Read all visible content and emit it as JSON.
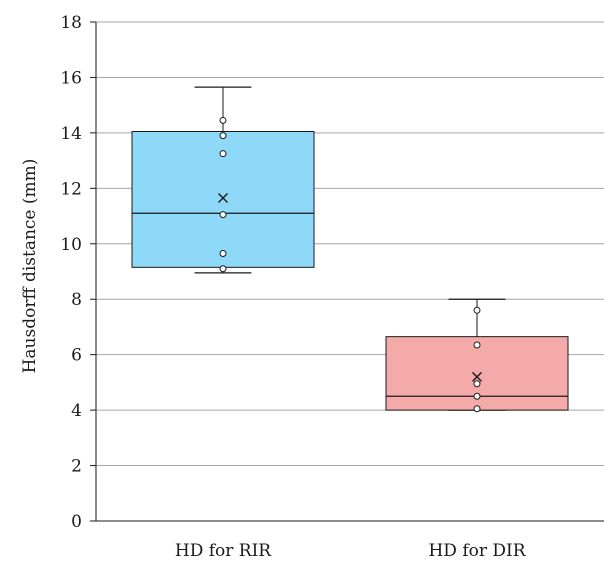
{
  "chart_data": {
    "type": "box",
    "title": "",
    "xlabel": "",
    "ylabel": "Hausdorff distance (mm)",
    "ylim": [
      0,
      18
    ],
    "yticks": [
      "0",
      "2",
      "4",
      "6",
      "8",
      "10",
      "12",
      "14",
      "16",
      "18"
    ],
    "grid": true,
    "categories": [
      "HD for RIR",
      "HD for DIR"
    ],
    "boxes": [
      {
        "category": "HD for RIR",
        "min": 8.95,
        "q1": 9.15,
        "median": 11.1,
        "q3": 14.05,
        "max": 15.65,
        "mean": 11.65,
        "points": [
          9.1,
          9.65,
          11.05,
          13.25,
          13.9,
          14.45
        ],
        "color": "#8ed8f8"
      },
      {
        "category": "HD for DIR",
        "min": 4.0,
        "q1": 4.0,
        "median": 4.5,
        "q3": 6.65,
        "max": 8.0,
        "mean": 5.2,
        "points": [
          4.05,
          4.5,
          4.95,
          6.35,
          7.6
        ],
        "color": "#f5aaaa"
      }
    ]
  }
}
